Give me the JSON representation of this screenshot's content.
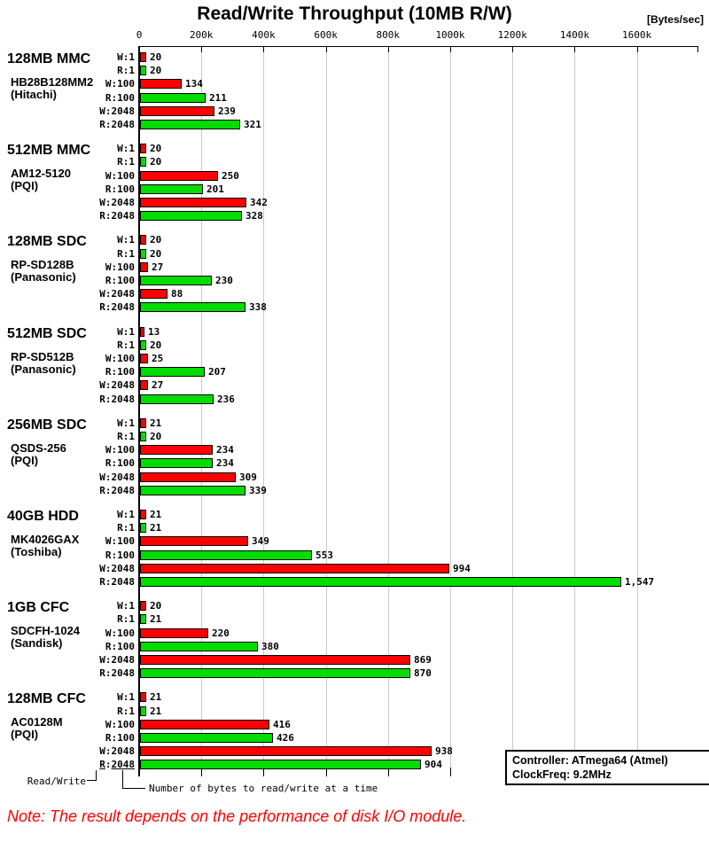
{
  "title": "Read/Write Throughput (10MB R/W)",
  "unit_label": "[Bytes/sec]",
  "colors": {
    "write_bar": "#ff0000",
    "read_bar": "#00dd00",
    "gridline": "#c9c9c9",
    "note_text": "#ff0000",
    "axis": "#000000"
  },
  "legend": {
    "read_write": "Read/Write",
    "bytes_note": "Number of bytes to read/write at a time"
  },
  "info_box": {
    "line1": "Controller: ATmega64 (Atmel)",
    "line2": "ClockFreq: 9.2MHz"
  },
  "note": "Note: The result depends on the performance of disk I/O module.",
  "chart_data": {
    "type": "bar",
    "orientation": "horizontal",
    "title": "Read/Write Throughput (10MB R/W)",
    "xlabel": "[Bytes/sec]",
    "xlim_k": [
      0,
      1600
    ],
    "grid": true,
    "x_ticks": [
      {
        "label": "0",
        "value_k": 0
      },
      {
        "label": "200k",
        "value_k": 200
      },
      {
        "label": "400k",
        "value_k": 400
      },
      {
        "label": "600k",
        "value_k": 600
      },
      {
        "label": "800k",
        "value_k": 800
      },
      {
        "label": "1000k",
        "value_k": 1000
      },
      {
        "label": "1200k",
        "value_k": 1200
      },
      {
        "label": "1400k",
        "value_k": 1400
      },
      {
        "label": "1600k",
        "value_k": 1600
      }
    ],
    "bar_categories": [
      "W:1",
      "R:1",
      "W:100",
      "R:100",
      "W:2048",
      "R:2048"
    ],
    "series_note": "values are kBytes/sec; W = write (red), R = read (green)",
    "groups": [
      {
        "device": "128MB MMC",
        "model": "HB28B128MM2",
        "maker": "(Hitachi)",
        "bars": [
          {
            "label": "W:1",
            "type": "write",
            "value_k": 20,
            "display": "20"
          },
          {
            "label": "R:1",
            "type": "read",
            "value_k": 20,
            "display": "20"
          },
          {
            "label": "W:100",
            "type": "write",
            "value_k": 134,
            "display": "134"
          },
          {
            "label": "R:100",
            "type": "read",
            "value_k": 211,
            "display": "211"
          },
          {
            "label": "W:2048",
            "type": "write",
            "value_k": 239,
            "display": "239"
          },
          {
            "label": "R:2048",
            "type": "read",
            "value_k": 321,
            "display": "321"
          }
        ]
      },
      {
        "device": "512MB MMC",
        "model": "AM12-5120",
        "maker": "(PQI)",
        "bars": [
          {
            "label": "W:1",
            "type": "write",
            "value_k": 20,
            "display": "20"
          },
          {
            "label": "R:1",
            "type": "read",
            "value_k": 20,
            "display": "20"
          },
          {
            "label": "W:100",
            "type": "write",
            "value_k": 250,
            "display": "250"
          },
          {
            "label": "R:100",
            "type": "read",
            "value_k": 201,
            "display": "201"
          },
          {
            "label": "W:2048",
            "type": "write",
            "value_k": 342,
            "display": "342"
          },
          {
            "label": "R:2048",
            "type": "read",
            "value_k": 328,
            "display": "328"
          }
        ]
      },
      {
        "device": "128MB SDC",
        "model": "RP-SD128B",
        "maker": "(Panasonic)",
        "bars": [
          {
            "label": "W:1",
            "type": "write",
            "value_k": 20,
            "display": "20"
          },
          {
            "label": "R:1",
            "type": "read",
            "value_k": 20,
            "display": "20"
          },
          {
            "label": "W:100",
            "type": "write",
            "value_k": 27,
            "display": "27"
          },
          {
            "label": "R:100",
            "type": "read",
            "value_k": 230,
            "display": "230"
          },
          {
            "label": "W:2048",
            "type": "write",
            "value_k": 88,
            "display": "88"
          },
          {
            "label": "R:2048",
            "type": "read",
            "value_k": 338,
            "display": "338"
          }
        ]
      },
      {
        "device": "512MB SDC",
        "model": "RP-SD512B",
        "maker": "(Panasonic)",
        "bars": [
          {
            "label": "W:1",
            "type": "write",
            "value_k": 13,
            "display": "13"
          },
          {
            "label": "R:1",
            "type": "read",
            "value_k": 20,
            "display": "20"
          },
          {
            "label": "W:100",
            "type": "write",
            "value_k": 25,
            "display": "25"
          },
          {
            "label": "R:100",
            "type": "read",
            "value_k": 207,
            "display": "207"
          },
          {
            "label": "W:2048",
            "type": "write",
            "value_k": 27,
            "display": "27"
          },
          {
            "label": "R:2048",
            "type": "read",
            "value_k": 236,
            "display": "236"
          }
        ]
      },
      {
        "device": "256MB SDC",
        "model": "QSDS-256",
        "maker": "(PQI)",
        "bars": [
          {
            "label": "W:1",
            "type": "write",
            "value_k": 21,
            "display": "21"
          },
          {
            "label": "R:1",
            "type": "read",
            "value_k": 20,
            "display": "20"
          },
          {
            "label": "W:100",
            "type": "write",
            "value_k": 234,
            "display": "234"
          },
          {
            "label": "R:100",
            "type": "read",
            "value_k": 234,
            "display": "234"
          },
          {
            "label": "W:2048",
            "type": "write",
            "value_k": 309,
            "display": "309"
          },
          {
            "label": "R:2048",
            "type": "read",
            "value_k": 339,
            "display": "339"
          }
        ]
      },
      {
        "device": "40GB HDD",
        "model": "MK4026GAX",
        "maker": "(Toshiba)",
        "bars": [
          {
            "label": "W:1",
            "type": "write",
            "value_k": 21,
            "display": "21"
          },
          {
            "label": "R:1",
            "type": "read",
            "value_k": 21,
            "display": "21"
          },
          {
            "label": "W:100",
            "type": "write",
            "value_k": 349,
            "display": "349"
          },
          {
            "label": "R:100",
            "type": "read",
            "value_k": 553,
            "display": "553"
          },
          {
            "label": "W:2048",
            "type": "write",
            "value_k": 994,
            "display": "994"
          },
          {
            "label": "R:2048",
            "type": "read",
            "value_k": 1547,
            "display": "1,547"
          }
        ]
      },
      {
        "device": "1GB CFC",
        "model": "SDCFH-1024",
        "maker": "(Sandisk)",
        "bars": [
          {
            "label": "W:1",
            "type": "write",
            "value_k": 20,
            "display": "20"
          },
          {
            "label": "R:1",
            "type": "read",
            "value_k": 21,
            "display": "21"
          },
          {
            "label": "W:100",
            "type": "write",
            "value_k": 220,
            "display": "220"
          },
          {
            "label": "R:100",
            "type": "read",
            "value_k": 380,
            "display": "380"
          },
          {
            "label": "W:2048",
            "type": "write",
            "value_k": 869,
            "display": "869"
          },
          {
            "label": "R:2048",
            "type": "read",
            "value_k": 870,
            "display": "870"
          }
        ]
      },
      {
        "device": "128MB CFC",
        "model": "AC0128M",
        "maker": "(PQI)",
        "bars": [
          {
            "label": "W:1",
            "type": "write",
            "value_k": 21,
            "display": "21"
          },
          {
            "label": "R:1",
            "type": "read",
            "value_k": 21,
            "display": "21"
          },
          {
            "label": "W:100",
            "type": "write",
            "value_k": 416,
            "display": "416"
          },
          {
            "label": "R:100",
            "type": "read",
            "value_k": 426,
            "display": "426"
          },
          {
            "label": "W:2048",
            "type": "write",
            "value_k": 938,
            "display": "938"
          },
          {
            "label": "R:2048",
            "type": "read",
            "value_k": 904,
            "display": "904",
            "callout": true
          }
        ]
      }
    ]
  }
}
